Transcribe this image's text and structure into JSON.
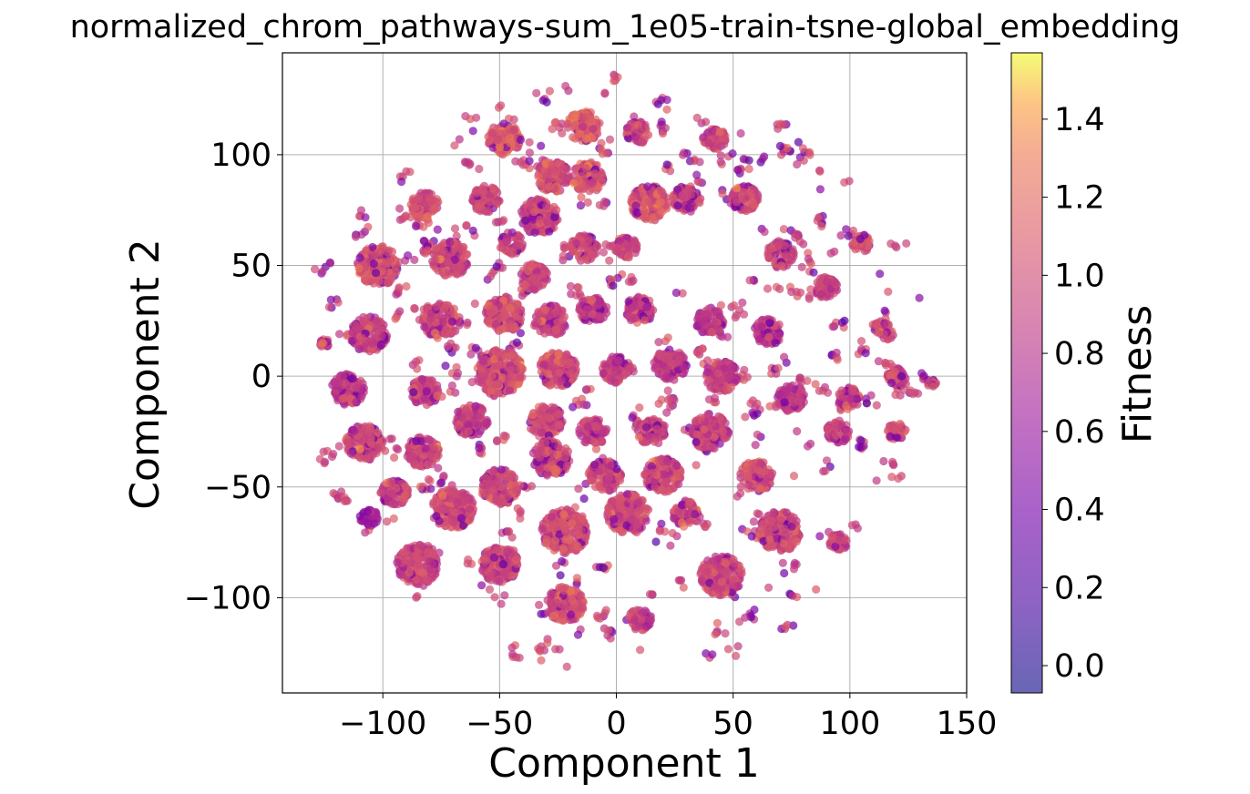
{
  "chart_data": {
    "type": "scatter",
    "title": "normalized_chrom_pathways-sum_1e05-train-tsne-global_embedding",
    "xlabel": "Component 1",
    "ylabel": "Component 2",
    "xlim": [
      -143,
      150
    ],
    "ylim": [
      -143,
      146
    ],
    "x_ticks": [
      -100,
      -50,
      0,
      50,
      100,
      150
    ],
    "y_ticks": [
      -100,
      -50,
      0,
      50,
      100
    ],
    "x_tick_labels": [
      "−100",
      "−50",
      "0",
      "50",
      "100",
      "150"
    ],
    "y_tick_labels": [
      "−100",
      "−50",
      "0",
      "50",
      "100"
    ],
    "grid": true,
    "colormap": "plasma",
    "color_alpha": 0.7,
    "marker_colors": {
      "dominant": "#e8725f",
      "low_fitness": "#9a1fa0"
    },
    "embedding_radius": 135,
    "clusters": [
      {
        "x": -102,
        "y": 50,
        "r": 9,
        "f": 1.05
      },
      {
        "x": -106,
        "y": 19,
        "r": 8,
        "f": 0.95
      },
      {
        "x": -115,
        "y": -6,
        "r": 7,
        "f": 0.9
      },
      {
        "x": -108,
        "y": -30,
        "r": 8,
        "f": 0.95
      },
      {
        "x": -95,
        "y": -53,
        "r": 6,
        "f": 0.9
      },
      {
        "x": -106,
        "y": -64,
        "r": 4,
        "f": 0.7
      },
      {
        "x": -85,
        "y": -85,
        "r": 9,
        "f": 0.95
      },
      {
        "x": -71,
        "y": 53,
        "r": 8,
        "f": 1.0
      },
      {
        "x": -75,
        "y": 25,
        "r": 8,
        "f": 0.95
      },
      {
        "x": -82,
        "y": -7,
        "r": 6,
        "f": 0.9
      },
      {
        "x": -83,
        "y": -34,
        "r": 7,
        "f": 0.95
      },
      {
        "x": -70,
        "y": -60,
        "r": 9,
        "f": 1.0
      },
      {
        "x": -82,
        "y": 77,
        "r": 6,
        "f": 1.0
      },
      {
        "x": -48,
        "y": 107,
        "r": 7,
        "f": 1.1
      },
      {
        "x": -56,
        "y": 80,
        "r": 6,
        "f": 1.0
      },
      {
        "x": -27,
        "y": 90,
        "r": 7,
        "f": 1.05
      },
      {
        "x": -14,
        "y": 113,
        "r": 7,
        "f": 1.1
      },
      {
        "x": -12,
        "y": 90,
        "r": 7,
        "f": 1.05
      },
      {
        "x": 9,
        "y": 110,
        "r": 5,
        "f": 1.0
      },
      {
        "x": -45,
        "y": 60,
        "r": 5,
        "f": 0.95
      },
      {
        "x": -33,
        "y": 72,
        "r": 8,
        "f": 1.0
      },
      {
        "x": -14,
        "y": 58,
        "r": 6,
        "f": 0.95
      },
      {
        "x": 14,
        "y": 78,
        "r": 8,
        "f": 1.05
      },
      {
        "x": 4,
        "y": 58,
        "r": 5,
        "f": 0.95
      },
      {
        "x": -35,
        "y": 45,
        "r": 6,
        "f": 0.95
      },
      {
        "x": -48,
        "y": 28,
        "r": 8,
        "f": 1.0
      },
      {
        "x": -28,
        "y": 25,
        "r": 7,
        "f": 0.95
      },
      {
        "x": -10,
        "y": 30,
        "r": 6,
        "f": 0.9
      },
      {
        "x": 10,
        "y": 30,
        "r": 6,
        "f": 0.9
      },
      {
        "x": -50,
        "y": 2,
        "r": 10,
        "f": 1.0
      },
      {
        "x": -25,
        "y": 3,
        "r": 8,
        "f": 1.0
      },
      {
        "x": 0,
        "y": 3,
        "r": 6,
        "f": 0.9
      },
      {
        "x": 23,
        "y": 5,
        "r": 7,
        "f": 0.9
      },
      {
        "x": -62,
        "y": -20,
        "r": 7,
        "f": 0.95
      },
      {
        "x": -30,
        "y": -20,
        "r": 7,
        "f": 0.95
      },
      {
        "x": -10,
        "y": -25,
        "r": 6,
        "f": 0.9
      },
      {
        "x": 15,
        "y": -25,
        "r": 6,
        "f": 0.95
      },
      {
        "x": -50,
        "y": -50,
        "r": 8,
        "f": 1.0
      },
      {
        "x": -28,
        "y": -37,
        "r": 8,
        "f": 1.0
      },
      {
        "x": -5,
        "y": -45,
        "r": 7,
        "f": 0.95
      },
      {
        "x": 20,
        "y": -45,
        "r": 8,
        "f": 0.95
      },
      {
        "x": -22,
        "y": -70,
        "r": 10,
        "f": 1.0
      },
      {
        "x": 5,
        "y": -62,
        "r": 9,
        "f": 1.0
      },
      {
        "x": 30,
        "y": -62,
        "r": 6,
        "f": 0.95
      },
      {
        "x": -50,
        "y": -85,
        "r": 8,
        "f": 0.95
      },
      {
        "x": -22,
        "y": -103,
        "r": 8,
        "f": 1.0
      },
      {
        "x": 10,
        "y": -110,
        "r": 5,
        "f": 0.9
      },
      {
        "x": 45,
        "y": -90,
        "r": 9,
        "f": 0.95
      },
      {
        "x": 40,
        "y": -25,
        "r": 8,
        "f": 0.95
      },
      {
        "x": 45,
        "y": 0,
        "r": 7,
        "f": 0.9
      },
      {
        "x": 60,
        "y": -45,
        "r": 7,
        "f": 1.0
      },
      {
        "x": 70,
        "y": -70,
        "r": 9,
        "f": 1.0
      },
      {
        "x": 40,
        "y": 25,
        "r": 6,
        "f": 0.9
      },
      {
        "x": 65,
        "y": 20,
        "r": 6,
        "f": 0.9
      },
      {
        "x": 70,
        "y": 55,
        "r": 6,
        "f": 0.95
      },
      {
        "x": 30,
        "y": 80,
        "r": 6,
        "f": 0.95
      },
      {
        "x": 55,
        "y": 80,
        "r": 6,
        "f": 0.95
      },
      {
        "x": 42,
        "y": 107,
        "r": 5,
        "f": 1.0
      },
      {
        "x": 90,
        "y": 40,
        "r": 5,
        "f": 0.9
      },
      {
        "x": 95,
        "y": -25,
        "r": 5,
        "f": 0.9
      },
      {
        "x": 95,
        "y": -75,
        "r": 4,
        "f": 0.95
      },
      {
        "x": 75,
        "y": -10,
        "r": 6,
        "f": 0.85
      },
      {
        "x": 105,
        "y": 60,
        "r": 4,
        "f": 1.05
      },
      {
        "x": 115,
        "y": 20,
        "r": 4,
        "f": 1.0
      },
      {
        "x": 120,
        "y": -25,
        "r": 4,
        "f": 1.0
      },
      {
        "x": 120,
        "y": 0,
        "r": 4,
        "f": 0.95
      },
      {
        "x": 100,
        "y": -10,
        "r": 5,
        "f": 0.9
      },
      {
        "x": -125,
        "y": 15,
        "r": 2,
        "f": 1.0
      },
      {
        "x": 135,
        "y": -3,
        "r": 2,
        "f": 1.0
      }
    ]
  },
  "colorbar": {
    "label": "Fitness",
    "min": -0.07,
    "max": 1.57,
    "ticks": [
      0.0,
      0.2,
      0.4,
      0.6,
      0.8,
      1.0,
      1.2,
      1.4
    ],
    "tick_labels": [
      "0.0",
      "0.2",
      "0.4",
      "0.6",
      "0.8",
      "1.0",
      "1.2",
      "1.4"
    ]
  }
}
